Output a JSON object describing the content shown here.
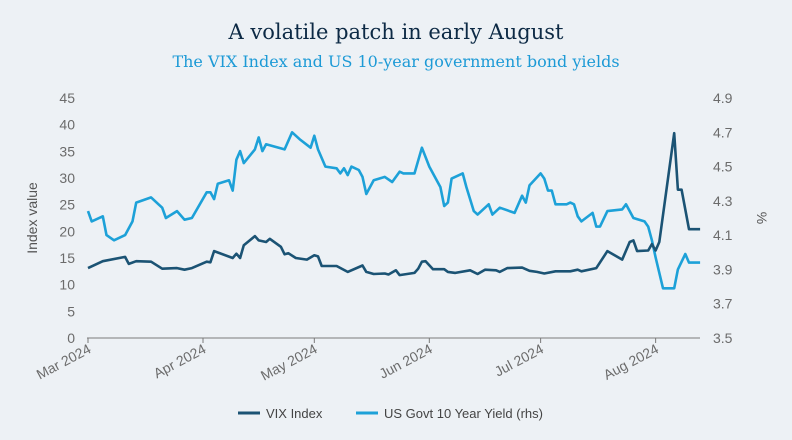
{
  "chart_data": {
    "type": "line",
    "title": "A volatile patch in early August",
    "subtitle": "The VIX Index and US 10-year government bond yields",
    "ylabel": "Index value",
    "y2label": "%",
    "ylim": [
      0,
      45
    ],
    "y2lim": [
      3.5,
      4.9
    ],
    "yticks": [
      "0",
      "5",
      "10",
      "15",
      "20",
      "25",
      "30",
      "35",
      "40",
      "45"
    ],
    "y2ticks": [
      "3.5",
      "3.7",
      "3.9",
      "4.1",
      "4.3",
      "4.5",
      "4.7",
      "4.9"
    ],
    "xticks": [
      {
        "date": "2024-03-01",
        "label": "Mar 2024"
      },
      {
        "date": "2024-04-01",
        "label": "Apr 2024"
      },
      {
        "date": "2024-05-01",
        "label": "May 2024"
      },
      {
        "date": "2024-06-01",
        "label": "Jun 2024"
      },
      {
        "date": "2024-07-01",
        "label": "Jul 2024"
      },
      {
        "date": "2024-08-01",
        "label": "Aug 2024"
      }
    ],
    "grid": false,
    "legend_position": "bottom",
    "series": [
      {
        "name": "VIX Index",
        "axis": "left",
        "color": "#1b5374",
        "points": [
          [
            "2024-03-01",
            13.1
          ],
          [
            "2024-03-05",
            14.4
          ],
          [
            "2024-03-11",
            15.2
          ],
          [
            "2024-03-12",
            13.9
          ],
          [
            "2024-03-14",
            14.4
          ],
          [
            "2024-03-18",
            14.3
          ],
          [
            "2024-03-21",
            13.0
          ],
          [
            "2024-03-25",
            13.1
          ],
          [
            "2024-03-27",
            12.8
          ],
          [
            "2024-03-29",
            13.1
          ],
          [
            "2024-04-02",
            14.3
          ],
          [
            "2024-04-03",
            14.2
          ],
          [
            "2024-04-04",
            16.3
          ],
          [
            "2024-04-09",
            15.0
          ],
          [
            "2024-04-10",
            15.8
          ],
          [
            "2024-04-11",
            15.0
          ],
          [
            "2024-04-12",
            17.4
          ],
          [
            "2024-04-15",
            19.1
          ],
          [
            "2024-04-16",
            18.3
          ],
          [
            "2024-04-18",
            18.0
          ],
          [
            "2024-04-19",
            18.6
          ],
          [
            "2024-04-22",
            17.1
          ],
          [
            "2024-04-23",
            15.7
          ],
          [
            "2024-04-24",
            15.9
          ],
          [
            "2024-04-26",
            15.0
          ],
          [
            "2024-04-29",
            14.7
          ],
          [
            "2024-05-01",
            15.5
          ],
          [
            "2024-05-02",
            15.3
          ],
          [
            "2024-05-03",
            13.5
          ],
          [
            "2024-05-07",
            13.5
          ],
          [
            "2024-05-10",
            12.4
          ],
          [
            "2024-05-14",
            13.6
          ],
          [
            "2024-05-15",
            12.4
          ],
          [
            "2024-05-17",
            12.0
          ],
          [
            "2024-05-20",
            12.1
          ],
          [
            "2024-05-21",
            11.9
          ],
          [
            "2024-05-23",
            12.7
          ],
          [
            "2024-05-24",
            11.8
          ],
          [
            "2024-05-28",
            12.2
          ],
          [
            "2024-05-29",
            13.0
          ],
          [
            "2024-05-30",
            14.3
          ],
          [
            "2024-05-31",
            14.4
          ],
          [
            "2024-06-02",
            12.9
          ],
          [
            "2024-06-05",
            12.9
          ],
          [
            "2024-06-06",
            12.4
          ],
          [
            "2024-06-08",
            12.2
          ],
          [
            "2024-06-12",
            12.7
          ],
          [
            "2024-06-14",
            12.0
          ],
          [
            "2024-06-16",
            12.8
          ],
          [
            "2024-06-19",
            12.7
          ],
          [
            "2024-06-20",
            12.4
          ],
          [
            "2024-06-22",
            13.1
          ],
          [
            "2024-06-26",
            13.2
          ],
          [
            "2024-06-28",
            12.6
          ],
          [
            "2024-06-30",
            12.4
          ],
          [
            "2024-07-02",
            12.1
          ],
          [
            "2024-07-05",
            12.5
          ],
          [
            "2024-07-09",
            12.5
          ],
          [
            "2024-07-11",
            12.8
          ],
          [
            "2024-07-12",
            12.5
          ],
          [
            "2024-07-16",
            13.1
          ],
          [
            "2024-07-19",
            16.3
          ],
          [
            "2024-07-23",
            14.7
          ],
          [
            "2024-07-25",
            18.0
          ],
          [
            "2024-07-26",
            18.3
          ],
          [
            "2024-07-27",
            16.3
          ],
          [
            "2024-07-30",
            16.4
          ],
          [
            "2024-07-31",
            17.6
          ],
          [
            "2024-08-01",
            16.4
          ],
          [
            "2024-08-02",
            18.0
          ],
          [
            "2024-08-06",
            38.4
          ],
          [
            "2024-08-07",
            27.8
          ],
          [
            "2024-08-08",
            27.8
          ],
          [
            "2024-08-10",
            20.4
          ],
          [
            "2024-08-13",
            20.4
          ]
        ]
      },
      {
        "name": "US Govt 10 Year Yield (rhs)",
        "axis": "right",
        "color": "#1da1d8",
        "points": [
          [
            "2024-03-01",
            4.24
          ],
          [
            "2024-03-02",
            4.18
          ],
          [
            "2024-03-05",
            4.21
          ],
          [
            "2024-03-06",
            4.1
          ],
          [
            "2024-03-08",
            4.07
          ],
          [
            "2024-03-11",
            4.1
          ],
          [
            "2024-03-13",
            4.18
          ],
          [
            "2024-03-14",
            4.29
          ],
          [
            "2024-03-18",
            4.32
          ],
          [
            "2024-03-20",
            4.28
          ],
          [
            "2024-03-21",
            4.26
          ],
          [
            "2024-03-22",
            4.2
          ],
          [
            "2024-03-25",
            4.24
          ],
          [
            "2024-03-27",
            4.19
          ],
          [
            "2024-03-29",
            4.2
          ],
          [
            "2024-04-02",
            4.35
          ],
          [
            "2024-04-03",
            4.35
          ],
          [
            "2024-04-04",
            4.31
          ],
          [
            "2024-04-05",
            4.4
          ],
          [
            "2024-04-08",
            4.42
          ],
          [
            "2024-04-09",
            4.36
          ],
          [
            "2024-04-10",
            4.54
          ],
          [
            "2024-04-11",
            4.59
          ],
          [
            "2024-04-12",
            4.52
          ],
          [
            "2024-04-15",
            4.6
          ],
          [
            "2024-04-16",
            4.67
          ],
          [
            "2024-04-17",
            4.59
          ],
          [
            "2024-04-18",
            4.63
          ],
          [
            "2024-04-23",
            4.6
          ],
          [
            "2024-04-25",
            4.7
          ],
          [
            "2024-04-27",
            4.66
          ],
          [
            "2024-04-30",
            4.61
          ],
          [
            "2024-05-01",
            4.68
          ],
          [
            "2024-05-02",
            4.6
          ],
          [
            "2024-05-04",
            4.5
          ],
          [
            "2024-05-07",
            4.49
          ],
          [
            "2024-05-08",
            4.46
          ],
          [
            "2024-05-09",
            4.49
          ],
          [
            "2024-05-10",
            4.45
          ],
          [
            "2024-05-11",
            4.5
          ],
          [
            "2024-05-13",
            4.48
          ],
          [
            "2024-05-14",
            4.44
          ],
          [
            "2024-05-15",
            4.34
          ],
          [
            "2024-05-17",
            4.42
          ],
          [
            "2024-05-20",
            4.44
          ],
          [
            "2024-05-22",
            4.41
          ],
          [
            "2024-05-24",
            4.47
          ],
          [
            "2024-05-25",
            4.46
          ],
          [
            "2024-05-28",
            4.46
          ],
          [
            "2024-05-30",
            4.61
          ],
          [
            "2024-06-01",
            4.5
          ],
          [
            "2024-06-04",
            4.38
          ],
          [
            "2024-06-05",
            4.27
          ],
          [
            "2024-06-06",
            4.29
          ],
          [
            "2024-06-07",
            4.43
          ],
          [
            "2024-06-10",
            4.46
          ],
          [
            "2024-06-11",
            4.38
          ],
          [
            "2024-06-13",
            4.24
          ],
          [
            "2024-06-14",
            4.22
          ],
          [
            "2024-06-17",
            4.28
          ],
          [
            "2024-06-18",
            4.22
          ],
          [
            "2024-06-20",
            4.26
          ],
          [
            "2024-06-24",
            4.23
          ],
          [
            "2024-06-26",
            4.33
          ],
          [
            "2024-06-27",
            4.29
          ],
          [
            "2024-06-28",
            4.39
          ],
          [
            "2024-07-01",
            4.46
          ],
          [
            "2024-07-02",
            4.43
          ],
          [
            "2024-07-03",
            4.36
          ],
          [
            "2024-07-04",
            4.36
          ],
          [
            "2024-07-05",
            4.28
          ],
          [
            "2024-07-08",
            4.28
          ],
          [
            "2024-07-09",
            4.29
          ],
          [
            "2024-07-10",
            4.28
          ],
          [
            "2024-07-11",
            4.21
          ],
          [
            "2024-07-12",
            4.18
          ],
          [
            "2024-07-15",
            4.23
          ],
          [
            "2024-07-16",
            4.15
          ],
          [
            "2024-07-17",
            4.15
          ],
          [
            "2024-07-19",
            4.24
          ],
          [
            "2024-07-23",
            4.25
          ],
          [
            "2024-07-24",
            4.28
          ],
          [
            "2024-07-26",
            4.2
          ],
          [
            "2024-07-29",
            4.18
          ],
          [
            "2024-07-30",
            4.15
          ],
          [
            "2024-07-31",
            4.07
          ],
          [
            "2024-08-01",
            3.97
          ],
          [
            "2024-08-03",
            3.79
          ],
          [
            "2024-08-06",
            3.79
          ],
          [
            "2024-08-07",
            3.9
          ],
          [
            "2024-08-09",
            3.99
          ],
          [
            "2024-08-10",
            3.94
          ],
          [
            "2024-08-13",
            3.94
          ]
        ]
      }
    ]
  }
}
